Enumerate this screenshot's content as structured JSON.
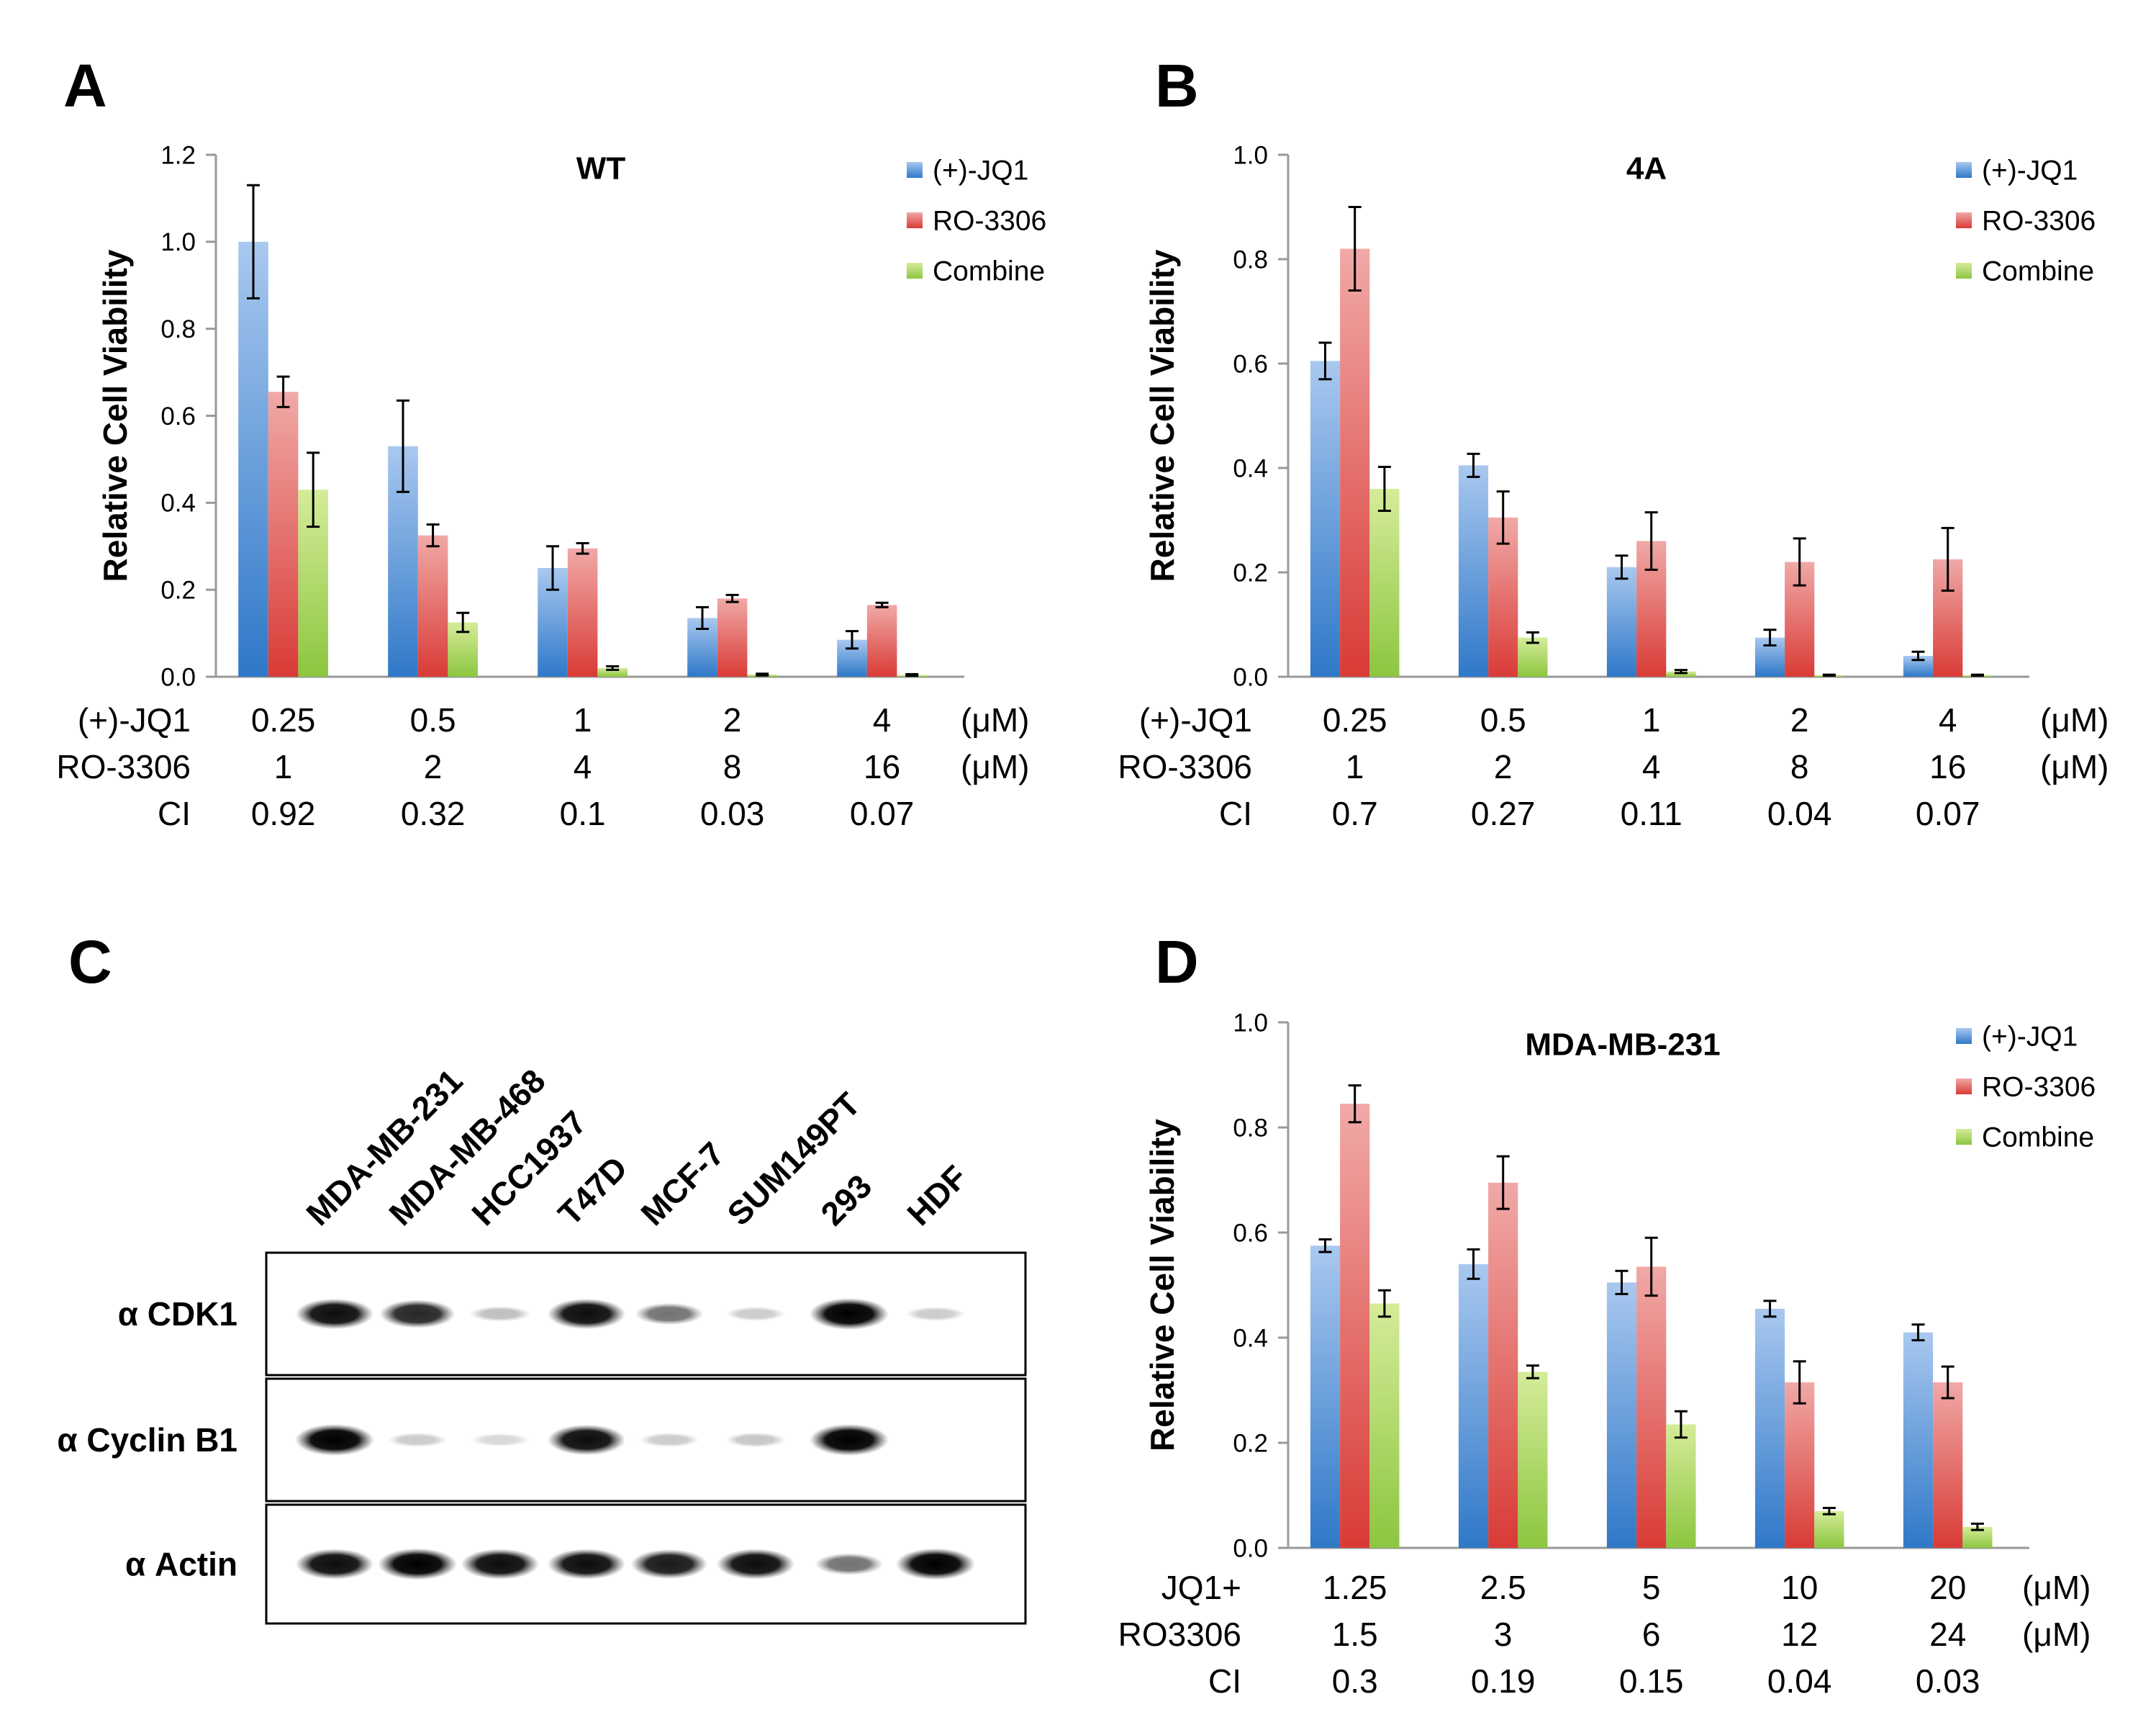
{
  "colors": {
    "jq1": "#5b9bd5",
    "ro": "#e46666",
    "combine": "#a6d854",
    "axis": "#999999",
    "text": "#000000"
  },
  "legend": [
    "(+)-JQ1",
    "RO-3306",
    "Combine"
  ],
  "chart_data": [
    {
      "panel": "A",
      "type": "bar",
      "title": "WT",
      "ylabel": "Relative Cell Viability",
      "ylim": [
        0,
        1.2
      ],
      "yticks": [
        "0.0",
        "0.2",
        "0.4",
        "0.6",
        "0.8",
        "1.0",
        "1.2"
      ],
      "categories": [
        "0.25",
        "0.5",
        "1",
        "2",
        "4"
      ],
      "series": [
        {
          "name": "(+)-JQ1",
          "values": [
            1.0,
            0.53,
            0.25,
            0.135,
            0.085
          ],
          "errors": [
            0.13,
            0.105,
            0.05,
            0.025,
            0.02
          ]
        },
        {
          "name": "RO-3306",
          "values": [
            0.655,
            0.325,
            0.295,
            0.18,
            0.165
          ],
          "errors": [
            0.035,
            0.025,
            0.012,
            0.008,
            0.005
          ]
        },
        {
          "name": "Combine",
          "values": [
            0.43,
            0.125,
            0.02,
            0.005,
            0.004
          ],
          "errors": [
            0.085,
            0.022,
            0.004,
            0.002,
            0.002
          ]
        }
      ],
      "table": [
        {
          "label": "(+)-JQ1",
          "values": [
            "0.25",
            "0.5",
            "1",
            "2",
            "4"
          ],
          "unit": "(μM)"
        },
        {
          "label": "RO-3306",
          "values": [
            "1",
            "2",
            "4",
            "8",
            "16"
          ],
          "unit": "(μM)"
        },
        {
          "label": "CI",
          "values": [
            "0.92",
            "0.32",
            "0.1",
            "0.03",
            "0.07"
          ],
          "unit": ""
        }
      ]
    },
    {
      "panel": "B",
      "type": "bar",
      "title": "4A",
      "ylabel": "Relative Cell Viability",
      "ylim": [
        0,
        1.0
      ],
      "yticks": [
        "0.0",
        "0.2",
        "0.4",
        "0.6",
        "0.8",
        "1.0"
      ],
      "categories": [
        "0.25",
        "0.5",
        "1",
        "2",
        "4"
      ],
      "series": [
        {
          "name": "(+)-JQ1",
          "values": [
            0.605,
            0.405,
            0.21,
            0.075,
            0.04
          ],
          "errors": [
            0.035,
            0.022,
            0.022,
            0.015,
            0.008
          ]
        },
        {
          "name": "RO-3306",
          "values": [
            0.82,
            0.305,
            0.26,
            0.22,
            0.225
          ],
          "errors": [
            0.08,
            0.05,
            0.055,
            0.045,
            0.06
          ]
        },
        {
          "name": "Combine",
          "values": [
            0.36,
            0.075,
            0.01,
            0.003,
            0.003
          ],
          "errors": [
            0.042,
            0.01,
            0.003,
            0.001,
            0.001
          ]
        }
      ],
      "table": [
        {
          "label": "(+)-JQ1",
          "values": [
            "0.25",
            "0.5",
            "1",
            "2",
            "4"
          ],
          "unit": "(μM)"
        },
        {
          "label": "RO-3306",
          "values": [
            "1",
            "2",
            "4",
            "8",
            "16"
          ],
          "unit": "(μM)"
        },
        {
          "label": "CI",
          "values": [
            "0.7",
            "0.27",
            "0.11",
            "0.04",
            "0.07"
          ],
          "unit": ""
        }
      ]
    },
    {
      "panel": "D",
      "type": "bar",
      "title": "MDA-MB-231",
      "ylabel": "Relative Cell Viability",
      "ylim": [
        0,
        1.0
      ],
      "yticks": [
        "0.0",
        "0.2",
        "0.4",
        "0.6",
        "0.8",
        "1.0"
      ],
      "categories": [
        "1.25",
        "2.5",
        "5",
        "10",
        "20"
      ],
      "series": [
        {
          "name": "(+)-JQ1",
          "values": [
            0.575,
            0.54,
            0.505,
            0.455,
            0.41
          ],
          "errors": [
            0.012,
            0.028,
            0.022,
            0.015,
            0.015
          ]
        },
        {
          "name": "RO-3306",
          "values": [
            0.845,
            0.695,
            0.535,
            0.315,
            0.315
          ],
          "errors": [
            0.035,
            0.05,
            0.055,
            0.04,
            0.03
          ]
        },
        {
          "name": "Combine",
          "values": [
            0.465,
            0.335,
            0.235,
            0.07,
            0.04
          ],
          "errors": [
            0.025,
            0.012,
            0.025,
            0.006,
            0.006
          ]
        }
      ],
      "table": [
        {
          "label": "JQ1+",
          "values": [
            "1.25",
            "2.5",
            "5",
            "10",
            "20"
          ],
          "unit": "(μM)"
        },
        {
          "label": "RO3306",
          "values": [
            "1.5",
            "3",
            "6",
            "12",
            "24"
          ],
          "unit": "(μM)"
        },
        {
          "label": "CI",
          "values": [
            "0.3",
            "0.19",
            "0.15",
            "0.04",
            "0.03"
          ],
          "unit": ""
        }
      ]
    }
  ],
  "blot": {
    "panel": "C",
    "lanes": [
      "MDA-MB-231",
      "MDA-MB-468",
      "HCC1937",
      "T47D",
      "MCF-7",
      "SUM149PT",
      "293",
      "HDF"
    ],
    "rows": [
      {
        "label": "α CDK1",
        "intensity": [
          0.95,
          0.85,
          0.25,
          0.95,
          0.55,
          0.2,
          1.0,
          0.2
        ]
      },
      {
        "label": "α Cyclin B1",
        "intensity": [
          1.0,
          0.2,
          0.15,
          0.95,
          0.2,
          0.22,
          1.0,
          0.0
        ]
      },
      {
        "label": "α Actin",
        "intensity": [
          0.95,
          1.0,
          0.95,
          0.95,
          0.9,
          0.95,
          0.55,
          1.0
        ]
      }
    ]
  }
}
